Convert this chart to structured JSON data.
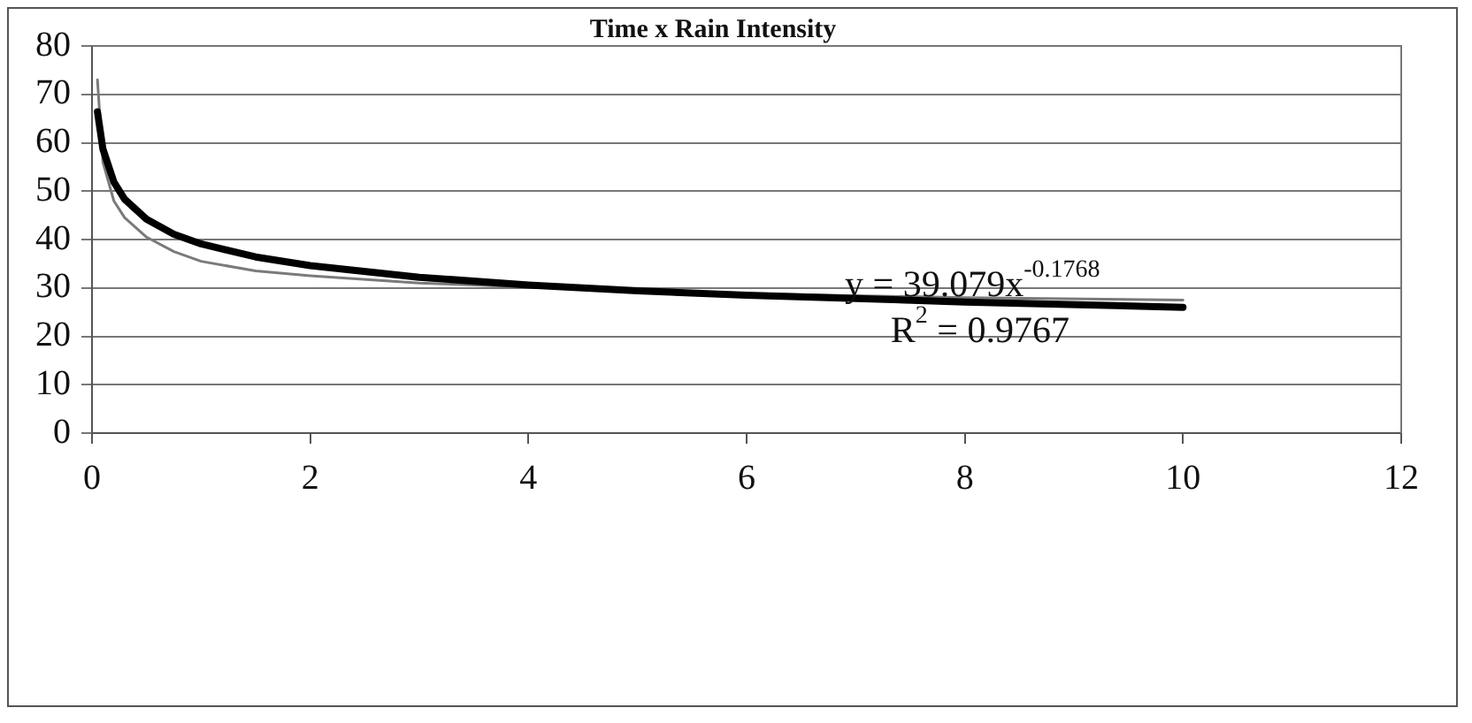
{
  "chart_data": {
    "type": "line",
    "title": "Time x Rain Intensity",
    "series": [
      {
        "color": "#7a7a7a",
        "x": [
          0.05,
          0.1,
          0.2,
          0.3,
          0.5,
          0.75,
          1,
          1.5,
          2,
          3,
          4,
          5,
          6,
          8,
          10
        ],
        "values": [
          73,
          56,
          48,
          44.5,
          40.5,
          37.5,
          35.5,
          33.5,
          32.5,
          31,
          30.2,
          29.5,
          28.8,
          28,
          27.5
        ]
      },
      {
        "color": "#000000",
        "x": [
          0.05,
          0.1,
          0.2,
          0.3,
          0.5,
          0.75,
          1,
          1.5,
          2,
          3,
          4,
          5,
          6,
          8,
          10
        ],
        "values": [
          66.4,
          58.7,
          51.9,
          48.3,
          44.2,
          41.1,
          39.1,
          36.4,
          34.6,
          32.2,
          30.6,
          29.4,
          28.5,
          27.1,
          26.0
        ]
      }
    ],
    "xlim": [
      0,
      12
    ],
    "xticks": [
      0,
      2,
      4,
      6,
      8,
      10,
      12
    ],
    "ylim": [
      0,
      80
    ],
    "yticks": [
      0,
      10,
      20,
      30,
      40,
      50,
      60,
      70,
      80
    ],
    "grid": "y",
    "legend": false,
    "marker": "none",
    "line_style": "solid",
    "annotations": [
      "y = 39.079x$^{-0.1768}$",
      "R$^{2}$ = 0.9767"
    ]
  }
}
